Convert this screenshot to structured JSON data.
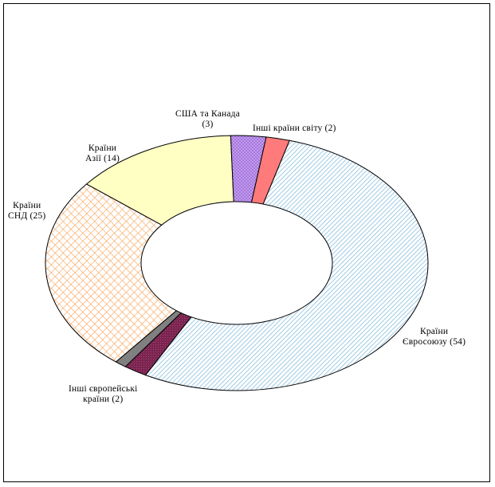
{
  "chart_data": {
    "type": "donut",
    "title": "",
    "series": [
      {
        "values": [
          54,
          2,
          1,
          25,
          14,
          3,
          2
        ],
        "categories": [
          "Країни Євросоюзу (54)",
          "Інші європейські країни (2)",
          "",
          "Країни СНД (25)",
          "Країни Азії (14)",
          "США та Канада (3)",
          "Інші країни світу (2)"
        ]
      }
    ],
    "colors": [
      "#9ecbe6",
      "#7b2450",
      "#808080",
      "#f7a75e",
      "#ffffc4",
      "#c49cf2",
      "#ff7b7b"
    ],
    "legend": "none",
    "data_labels": "outside"
  },
  "labels": {
    "eu": "Країни\nЄвросоюзу (54)",
    "other_europe": "Інші європейські\nкраїни (2)",
    "cis": "Країни\nСНД (25)",
    "asia": "Країни\nАзії (14)",
    "usa": "США та Канада\n(3)",
    "world": "Інші країни світу (2)"
  }
}
